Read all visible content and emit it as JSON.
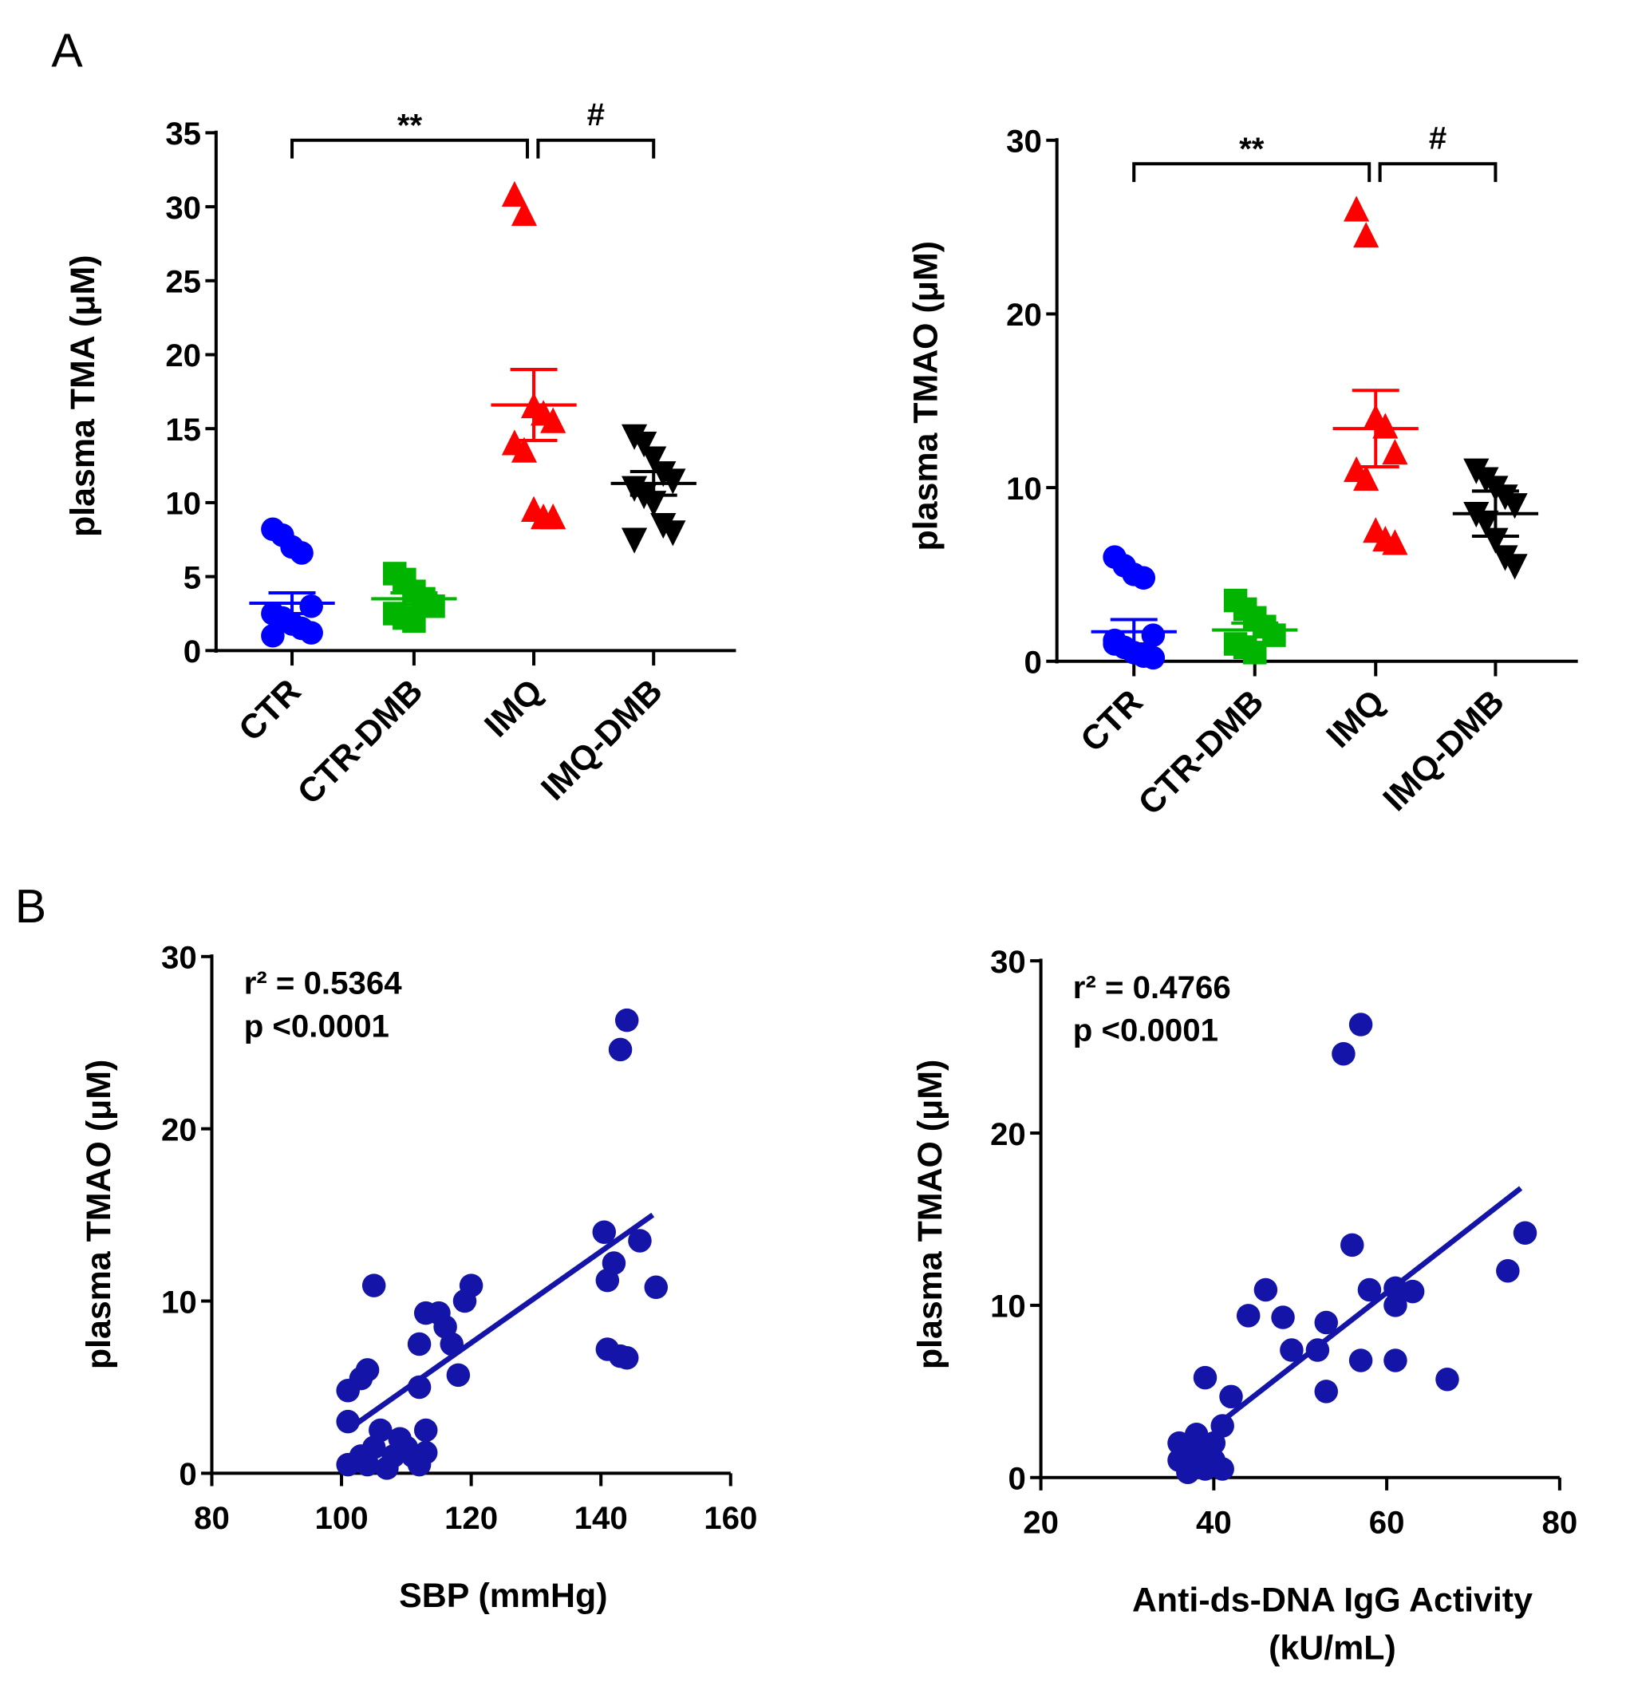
{
  "panel_labels": [
    "A",
    "B"
  ],
  "colors": {
    "CTR": "#0000ff",
    "CTR-DMB": "#00b400",
    "IMQ": "#ff0000",
    "IMQ-DMB": "#000000",
    "scatter": "#1414a8"
  },
  "chart_data": [
    {
      "type": "scatter",
      "panel": "A",
      "ylabel": "plasma TMA (μM)",
      "ylim": [
        0,
        35
      ],
      "yticks": [
        0,
        5,
        10,
        15,
        20,
        25,
        30,
        35
      ],
      "categories": [
        "CTR",
        "CTR-DMB",
        "IMQ",
        "IMQ-DMB"
      ],
      "groups": [
        {
          "name": "CTR",
          "marker": "circle",
          "values": [
            8.2,
            7.8,
            7.0,
            6.6,
            3.0,
            2.5,
            2.0,
            1.8,
            1.5,
            1.2,
            1.0,
            2.2
          ],
          "mean": 3.2,
          "sem": 0.7
        },
        {
          "name": "CTR-DMB",
          "marker": "square",
          "values": [
            5.2,
            4.8,
            4.0,
            3.5,
            3.0,
            2.5,
            2.2,
            2.0
          ],
          "mean": 3.5,
          "sem": 0.4
        },
        {
          "name": "IMQ",
          "marker": "triangle-up",
          "values": [
            30.8,
            29.5,
            16.5,
            16.0,
            15.5,
            14.0,
            13.5,
            9.5,
            9.0,
            9.0
          ],
          "mean": 16.6,
          "sem": 2.4
        },
        {
          "name": "IMQ-DMB",
          "marker": "triangle-down",
          "values": [
            14.5,
            14.0,
            13.0,
            12.0,
            11.5,
            11.0,
            10.5,
            10.0,
            8.5,
            8.0,
            7.5
          ],
          "mean": 11.3,
          "sem": 0.8
        }
      ],
      "significance": [
        {
          "from": "CTR",
          "to": "IMQ",
          "label": "**"
        },
        {
          "from": "IMQ",
          "to": "IMQ-DMB",
          "label": "#"
        }
      ]
    },
    {
      "type": "scatter",
      "panel": "A",
      "ylabel": "plasma TMAO (μM)",
      "ylim": [
        0,
        30
      ],
      "yticks": [
        0,
        10,
        20,
        30
      ],
      "categories": [
        "CTR",
        "CTR-DMB",
        "IMQ",
        "IMQ-DMB"
      ],
      "groups": [
        {
          "name": "CTR",
          "marker": "circle",
          "values": [
            6.0,
            5.5,
            5.0,
            4.8,
            1.5,
            1.0,
            0.8,
            0.5,
            0.3,
            0.2,
            1.2
          ],
          "mean": 1.7,
          "sem": 0.7
        },
        {
          "name": "CTR-DMB",
          "marker": "square",
          "values": [
            3.5,
            3.0,
            2.5,
            2.0,
            1.5,
            1.0,
            0.8,
            0.5
          ],
          "mean": 1.8,
          "sem": 0.4
        },
        {
          "name": "IMQ",
          "marker": "triangle-up",
          "values": [
            26.0,
            24.5,
            14.0,
            13.5,
            12.0,
            11.0,
            10.5,
            7.5,
            7.0,
            6.8
          ],
          "mean": 13.4,
          "sem": 2.2
        },
        {
          "name": "IMQ-DMB",
          "marker": "triangle-down",
          "values": [
            11.0,
            10.5,
            10.0,
            9.5,
            9.0,
            8.5,
            8.0,
            7.0,
            6.0,
            5.5
          ],
          "mean": 8.5,
          "sem": 1.3
        }
      ],
      "significance": [
        {
          "from": "CTR",
          "to": "IMQ",
          "label": "**"
        },
        {
          "from": "IMQ",
          "to": "IMQ-DMB",
          "label": "#"
        }
      ]
    },
    {
      "type": "scatter",
      "panel": "B",
      "xlabel": "SBP (mmHg)",
      "ylabel": "plasma TMAO (μM)",
      "xlim": [
        80,
        160
      ],
      "ylim": [
        0,
        30
      ],
      "xticks": [
        80,
        100,
        120,
        140,
        160
      ],
      "yticks": [
        0,
        10,
        20,
        30
      ],
      "r2_text": "r² = 0.5364",
      "p_text": "p <0.0001",
      "fit": [
        [
          102,
          2.8
        ],
        [
          148,
          15.0
        ]
      ],
      "points": [
        [
          144,
          26.3
        ],
        [
          143,
          24.6
        ],
        [
          140.5,
          14
        ],
        [
          146,
          13.5
        ],
        [
          142,
          12.2
        ],
        [
          141,
          11.2
        ],
        [
          148.5,
          10.8
        ],
        [
          141,
          7.2
        ],
        [
          143,
          6.8
        ],
        [
          144,
          6.7
        ],
        [
          105,
          10.9
        ],
        [
          120,
          10.9
        ],
        [
          119,
          10
        ],
        [
          113,
          9.3
        ],
        [
          115,
          9.3
        ],
        [
          116,
          8.5
        ],
        [
          112,
          7.5
        ],
        [
          117,
          7.5
        ],
        [
          118,
          5.7
        ],
        [
          104,
          6
        ],
        [
          103,
          5.5
        ],
        [
          101,
          4.8
        ],
        [
          112,
          5
        ],
        [
          101,
          3
        ],
        [
          101,
          0.5
        ],
        [
          103,
          1
        ],
        [
          105,
          1.5
        ],
        [
          106,
          2.5
        ],
        [
          108,
          1
        ],
        [
          110,
          1.5
        ],
        [
          112,
          0.5
        ],
        [
          113,
          2.5
        ],
        [
          107,
          0.3
        ],
        [
          109,
          2
        ],
        [
          111,
          1
        ],
        [
          104,
          0.5
        ],
        [
          113,
          1.2
        ]
      ]
    },
    {
      "type": "scatter",
      "panel": "B",
      "xlabel": "Anti-ds-DNA IgG Activity",
      "xlabel2": "(kU/mL)",
      "ylabel": "plasma TMAO (μM)",
      "xlim": [
        20,
        80
      ],
      "ylim": [
        0,
        30
      ],
      "xticks": [
        20,
        40,
        60,
        80
      ],
      "yticks": [
        0,
        10,
        20,
        30
      ],
      "r2_text": "r² = 0.4766",
      "p_text": "p <0.0001",
      "fit": [
        [
          41,
          3.3
        ],
        [
          75.5,
          16.8
        ]
      ],
      "points": [
        [
          57,
          26.3
        ],
        [
          55,
          24.6
        ],
        [
          76,
          14.2
        ],
        [
          56,
          13.5
        ],
        [
          74,
          12
        ],
        [
          46,
          10.9
        ],
        [
          58,
          10.9
        ],
        [
          61,
          11
        ],
        [
          63,
          10.8
        ],
        [
          61,
          10
        ],
        [
          44,
          9.4
        ],
        [
          48,
          9.3
        ],
        [
          53,
          9
        ],
        [
          49,
          7.4
        ],
        [
          52,
          7.4
        ],
        [
          57,
          6.8
        ],
        [
          61,
          6.8
        ],
        [
          67,
          5.7
        ],
        [
          53,
          5
        ],
        [
          39,
          5.8
        ],
        [
          42,
          4.7
        ],
        [
          41,
          3
        ],
        [
          36,
          2
        ],
        [
          37,
          1.5
        ],
        [
          38,
          1
        ],
        [
          39,
          0.5
        ],
        [
          40,
          2
        ],
        [
          41,
          0.5
        ],
        [
          37,
          0.3
        ],
        [
          38,
          2.5
        ],
        [
          36,
          1
        ],
        [
          39,
          1.5
        ],
        [
          40,
          1
        ]
      ]
    }
  ]
}
